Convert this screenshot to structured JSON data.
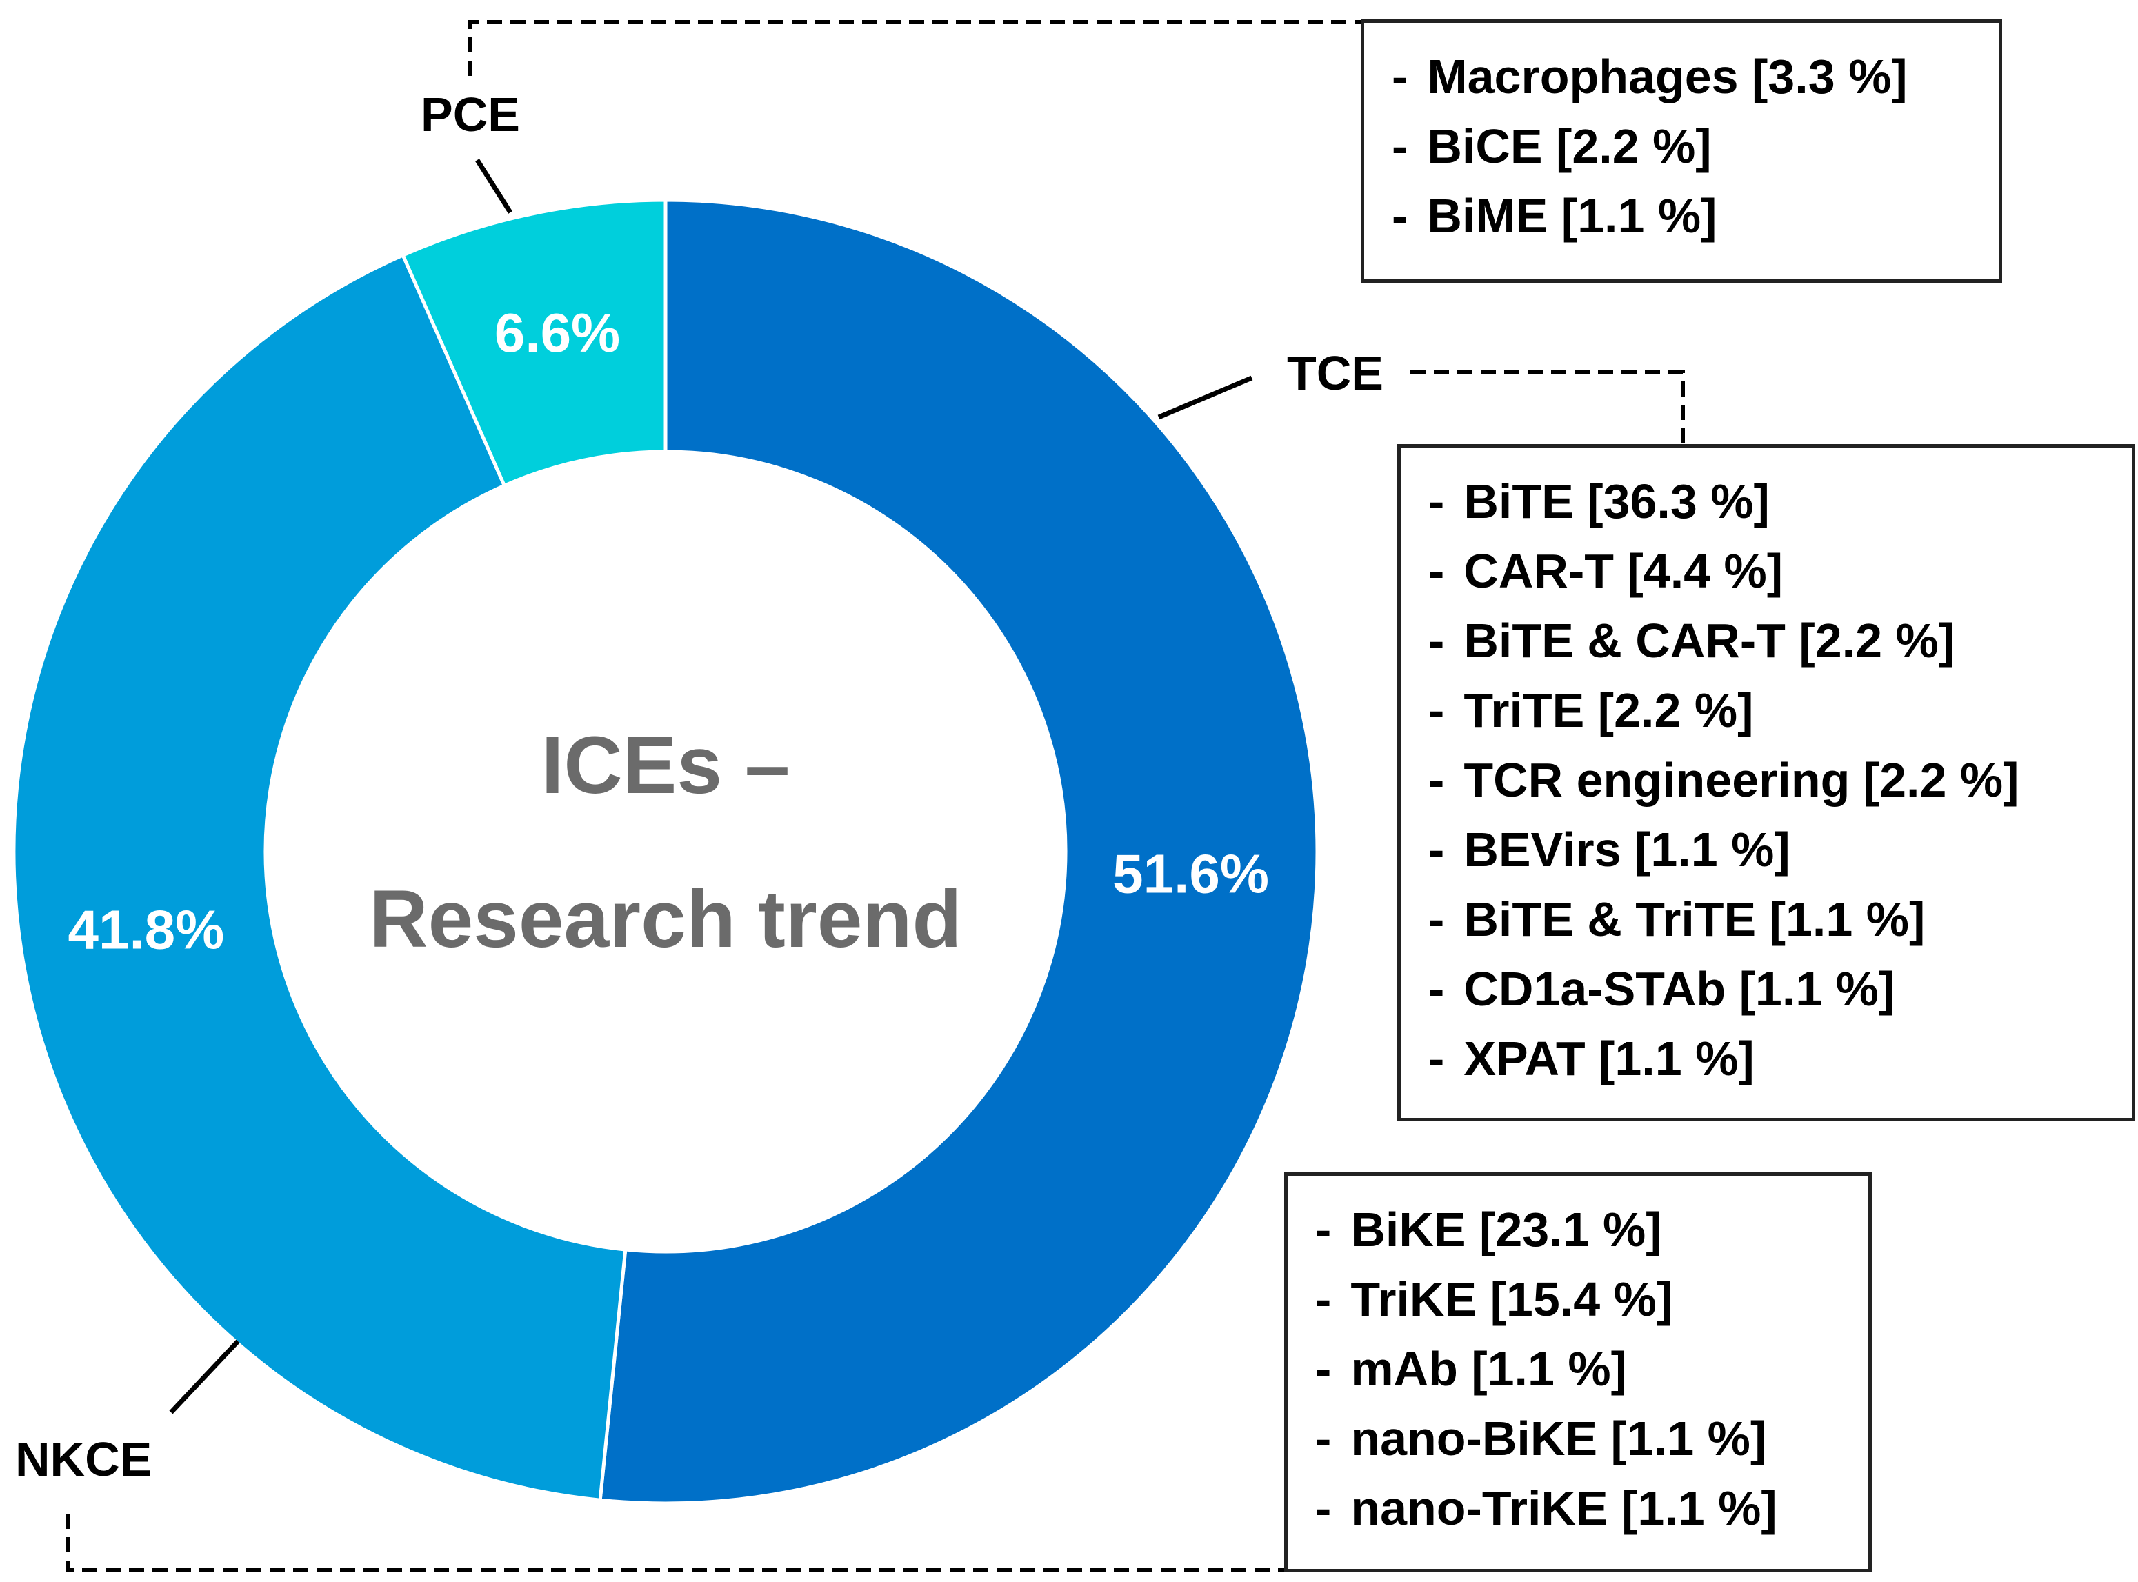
{
  "chart_data": {
    "type": "donut",
    "title": "ICEs –",
    "subtitle": "Research trend",
    "colors": {
      "TCE": "#0070C8",
      "NKCE": "#009DDB",
      "PCE": "#00CFDC"
    },
    "slices": [
      {
        "name": "TCE",
        "value": 51.6,
        "label": "51.6%"
      },
      {
        "name": "NKCE",
        "value": 41.8,
        "label": "41.8%"
      },
      {
        "name": "PCE",
        "value": 6.6,
        "label": "6.6%"
      }
    ],
    "breakdowns": {
      "PCE": [
        "Macrophages [3.3 %]",
        "BiCE [2.2 %]",
        "BiME [1.1 %]"
      ],
      "TCE": [
        "BiTE [36.3 %]",
        "CAR-T [4.4 %]",
        "BiTE & CAR-T [2.2 %]",
        "TriTE [2.2 %]",
        "TCR engineering [2.2 %]",
        "BEVirs [1.1 %]",
        "BiTE & TriTE [1.1 %]",
        "CD1a-STAb [1.1 %]",
        "XPAT [1.1 %]"
      ],
      "NKCE": [
        "BiKE [23.1 %]",
        "TriKE [15.4 %]",
        "mAb [1.1 %]",
        "nano-BiKE [1.1 %]",
        "nano-TriKE [1.1 %]"
      ]
    },
    "bullet": "-"
  }
}
